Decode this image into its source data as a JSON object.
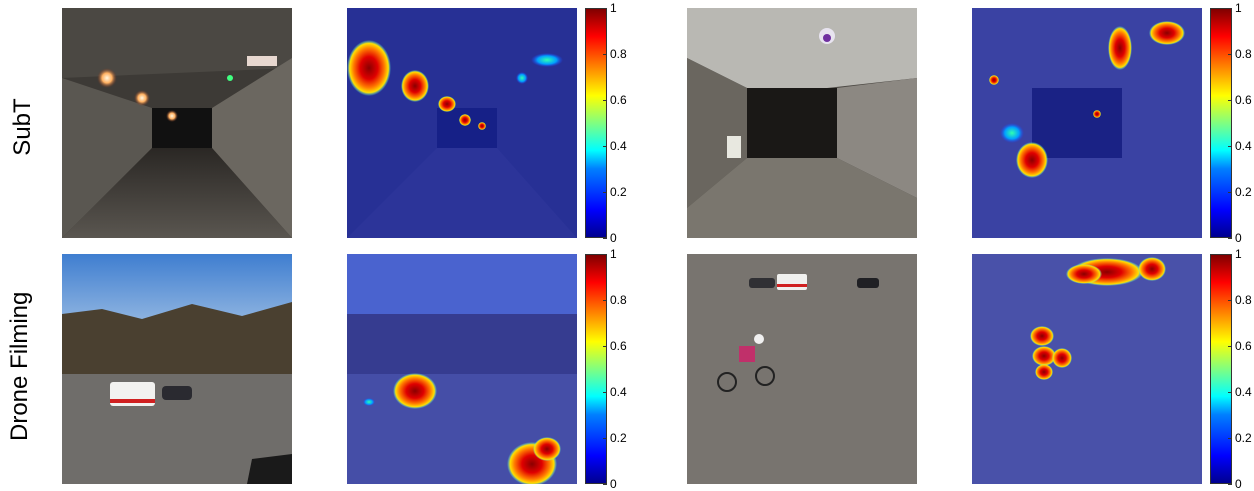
{
  "rows": [
    {
      "label": "SubT"
    },
    {
      "label": "Drone Filming"
    }
  ],
  "colorbar": {
    "ticks": [
      "0",
      "0.2",
      "0.4",
      "0.6",
      "0.8",
      "1"
    ],
    "colormap": "jet"
  },
  "panels": [
    {
      "row": 0,
      "col": 0,
      "kind": "photo",
      "scene": "underground-tunnel-lights"
    },
    {
      "row": 0,
      "col": 1,
      "kind": "heatmap",
      "scene": "underground-tunnel-attention"
    },
    {
      "row": 0,
      "col": 2,
      "kind": "photo",
      "scene": "underground-tunnel-person"
    },
    {
      "row": 0,
      "col": 3,
      "kind": "heatmap",
      "scene": "underground-tunnel-person-attention"
    },
    {
      "row": 1,
      "col": 0,
      "kind": "photo",
      "scene": "field-ambulance"
    },
    {
      "row": 1,
      "col": 1,
      "kind": "heatmap",
      "scene": "field-ambulance-attention"
    },
    {
      "row": 1,
      "col": 2,
      "kind": "photo",
      "scene": "field-cyclist"
    },
    {
      "row": 1,
      "col": 3,
      "kind": "heatmap",
      "scene": "field-cyclist-attention"
    }
  ]
}
